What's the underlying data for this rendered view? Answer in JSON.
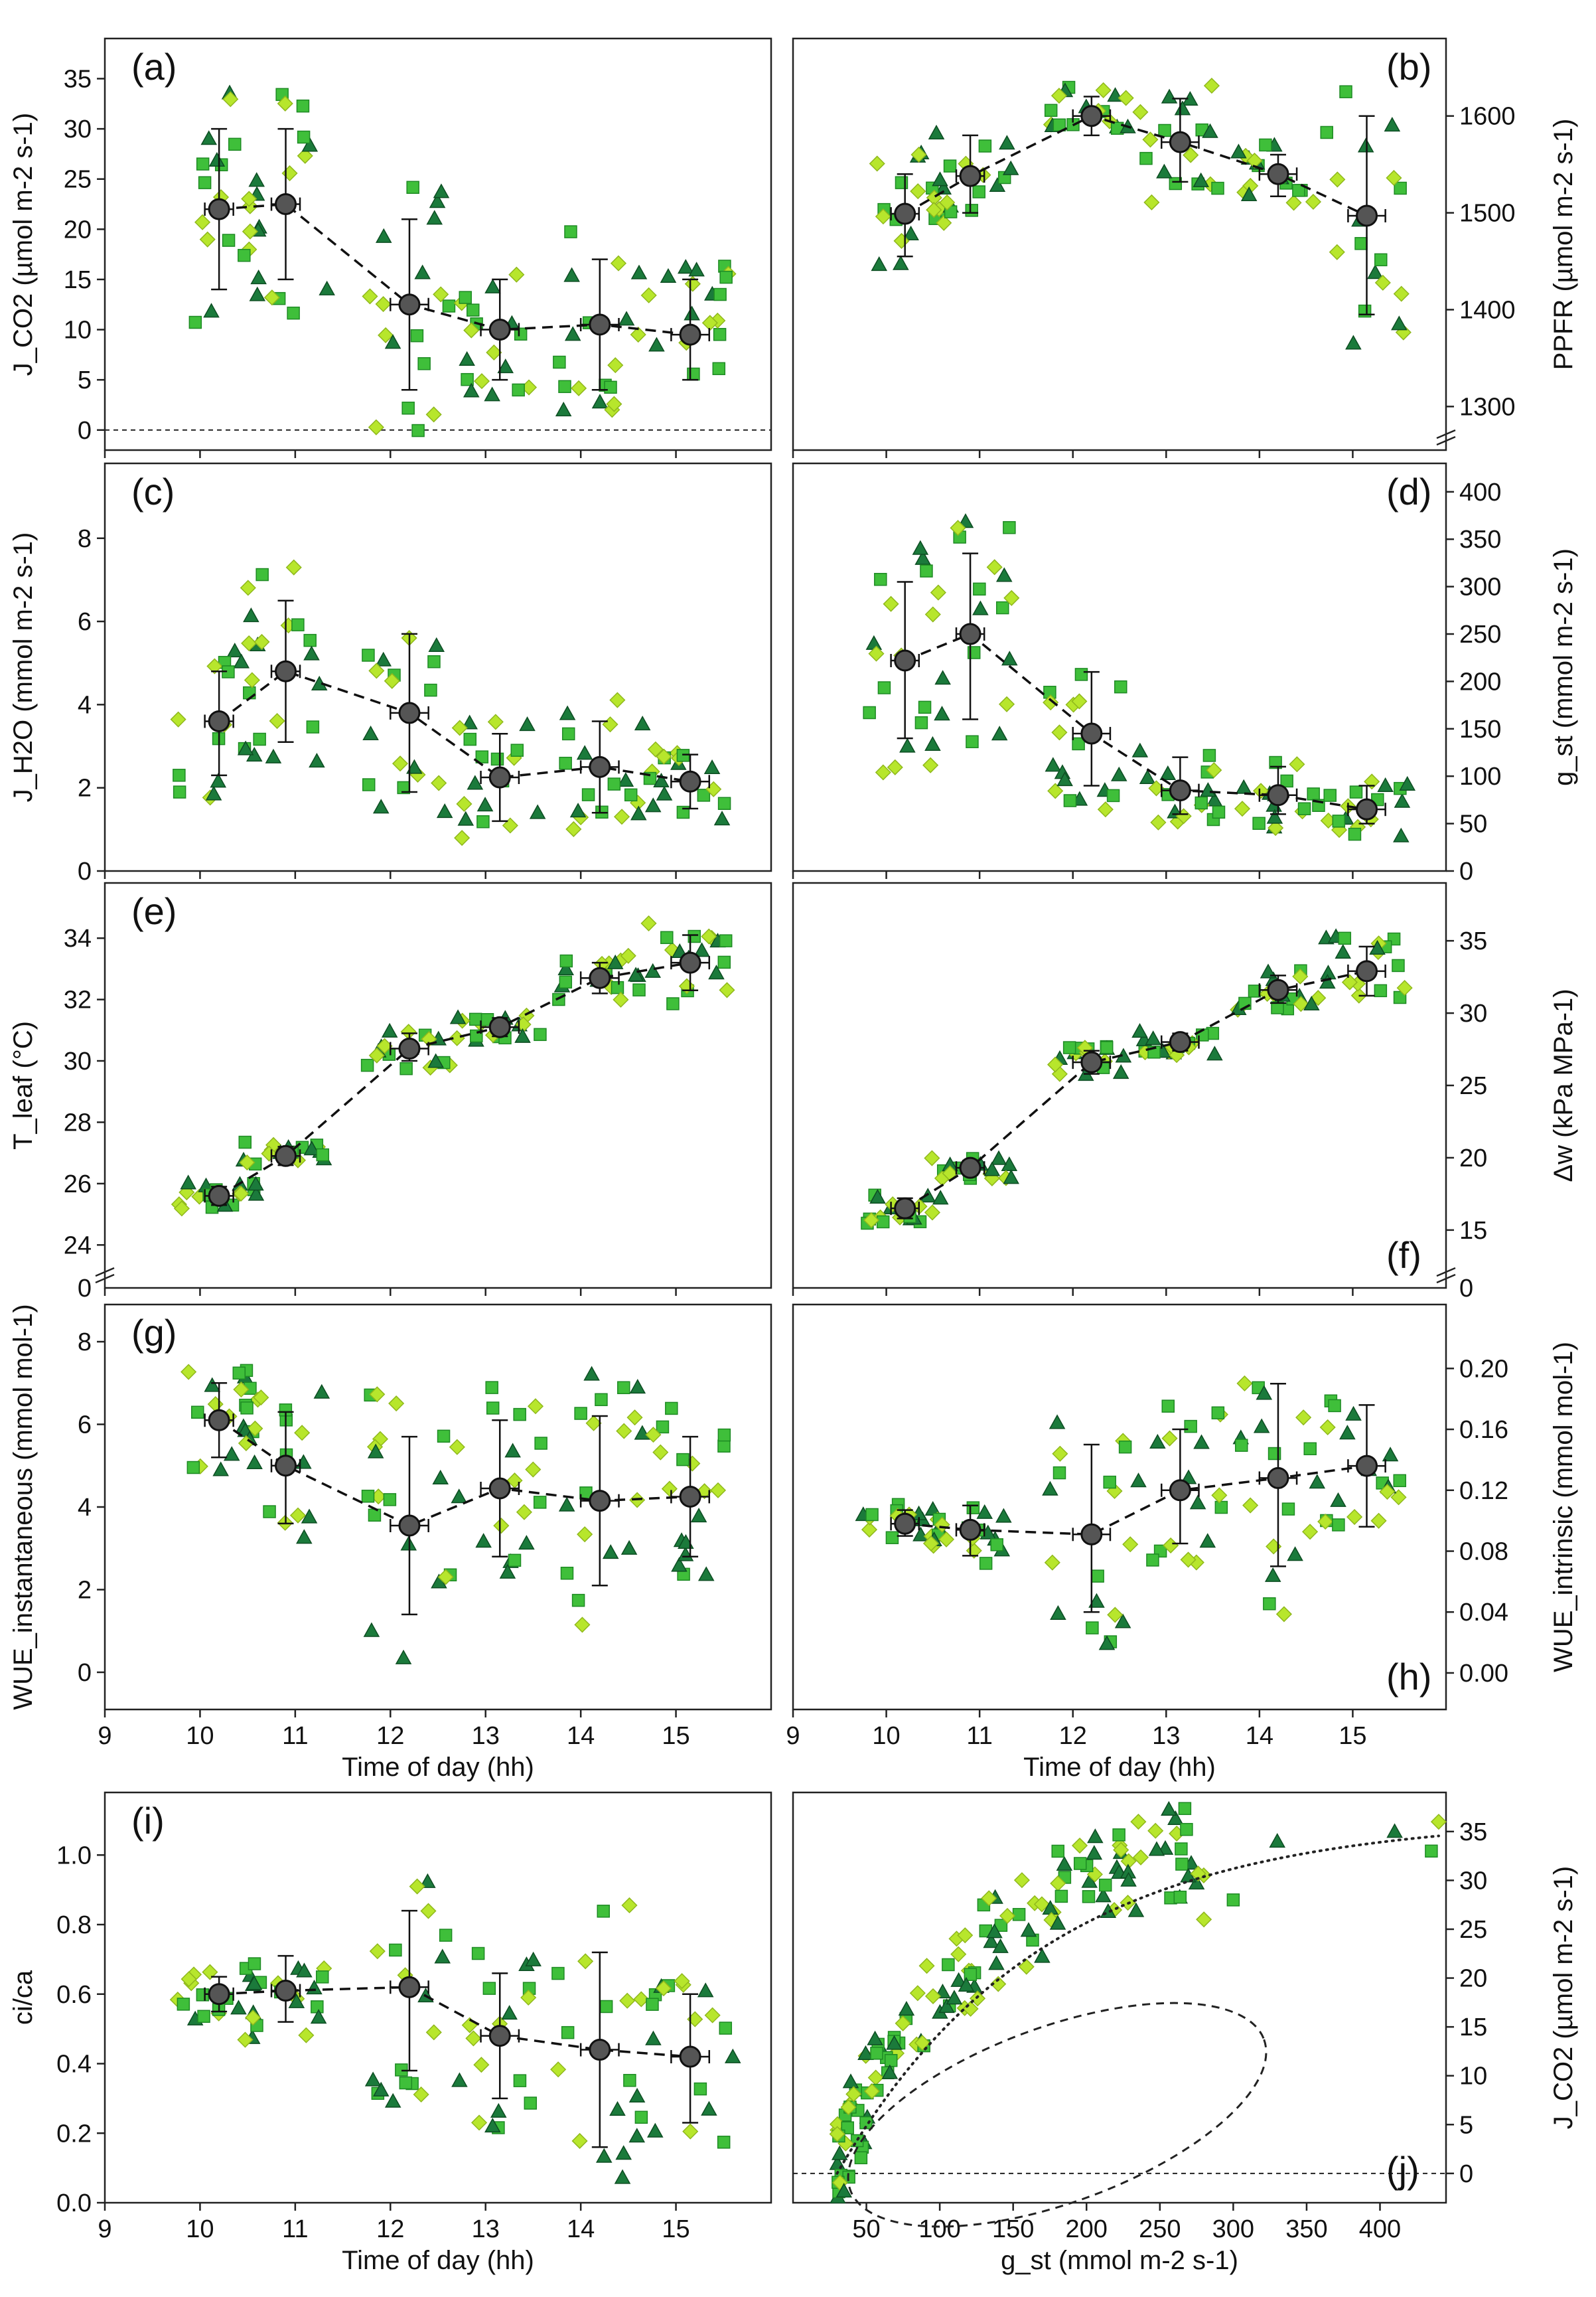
{
  "colors": {
    "dark": "#1b7a3b",
    "medium": "#3fbf3a",
    "light": "#b7e62c",
    "mean": "#555555"
  },
  "chart_data": [
    {
      "id": "a",
      "label": "(a)",
      "type": "scatter",
      "ylabel": "J_CO2 (µmol m-2 s-1)",
      "y_side": "left",
      "ylim": [
        -2,
        39
      ],
      "yticks": [
        0,
        5,
        10,
        15,
        20,
        25,
        30,
        35
      ],
      "xlim": [
        9,
        16
      ],
      "xticks": [
        9,
        10,
        11,
        12,
        13,
        14,
        15
      ],
      "zero_line": true,
      "means": [
        {
          "x": 10.2,
          "y": 22,
          "ylo": 14,
          "yhi": 30,
          "xerr": 0.15
        },
        {
          "x": 10.9,
          "y": 22.5,
          "ylo": 15,
          "yhi": 30,
          "xerr": 0.15
        },
        {
          "x": 12.2,
          "y": 12.5,
          "ylo": 4,
          "yhi": 21,
          "xerr": 0.2
        },
        {
          "x": 13.15,
          "y": 10,
          "ylo": 5,
          "yhi": 15,
          "xerr": 0.2
        },
        {
          "x": 14.2,
          "y": 10.5,
          "ylo": 4,
          "yhi": 17,
          "xerr": 0.2
        },
        {
          "x": 15.15,
          "y": 9.5,
          "ylo": 5,
          "yhi": 15,
          "xerr": 0.2
        }
      ]
    },
    {
      "id": "b",
      "label": "(b)",
      "type": "scatter",
      "ylabel": "PPFR (µmol m-2 s-1)",
      "y_side": "right",
      "ylim": [
        1255,
        1680
      ],
      "yticks": [
        1300,
        1400,
        1500,
        1600
      ],
      "axis_break": true,
      "xlim": [
        9,
        16
      ],
      "xticks": [
        9,
        10,
        11,
        12,
        13,
        14,
        15
      ],
      "means": [
        {
          "x": 10.2,
          "y": 1499,
          "ylo": 1455,
          "yhi": 1540,
          "xerr": 0.15
        },
        {
          "x": 10.9,
          "y": 1538,
          "ylo": 1500,
          "yhi": 1580,
          "xerr": 0.15
        },
        {
          "x": 12.2,
          "y": 1600,
          "ylo": 1580,
          "yhi": 1620,
          "xerr": 0.2
        },
        {
          "x": 13.15,
          "y": 1573,
          "ylo": 1532,
          "yhi": 1618,
          "xerr": 0.2
        },
        {
          "x": 14.2,
          "y": 1540,
          "ylo": 1517,
          "yhi": 1560,
          "xerr": 0.2
        },
        {
          "x": 15.15,
          "y": 1497,
          "ylo": 1395,
          "yhi": 1600,
          "xerr": 0.2
        }
      ]
    },
    {
      "id": "c",
      "label": "(c)",
      "type": "scatter",
      "ylabel": "J_H2O (mmol m-2 s-1)",
      "y_side": "left",
      "ylim": [
        0,
        9.8
      ],
      "yticks": [
        0,
        2,
        4,
        6,
        8
      ],
      "xlim": [
        9,
        16
      ],
      "xticks": [
        9,
        10,
        11,
        12,
        13,
        14,
        15
      ],
      "means": [
        {
          "x": 10.2,
          "y": 3.6,
          "ylo": 2.3,
          "yhi": 4.8,
          "xerr": 0.15
        },
        {
          "x": 10.9,
          "y": 4.8,
          "ylo": 3.1,
          "yhi": 6.5,
          "xerr": 0.15
        },
        {
          "x": 12.2,
          "y": 3.8,
          "ylo": 1.9,
          "yhi": 5.7,
          "xerr": 0.2
        },
        {
          "x": 13.15,
          "y": 2.25,
          "ylo": 1.2,
          "yhi": 3.3,
          "xerr": 0.2
        },
        {
          "x": 14.2,
          "y": 2.5,
          "ylo": 1.4,
          "yhi": 3.6,
          "xerr": 0.2
        },
        {
          "x": 15.15,
          "y": 2.15,
          "ylo": 1.5,
          "yhi": 2.8,
          "xerr": 0.2
        }
      ]
    },
    {
      "id": "d",
      "label": "(d)",
      "type": "scatter",
      "ylabel": "g_st (mmol m-2 s-1)",
      "y_side": "right",
      "ylim": [
        0,
        430
      ],
      "yticks": [
        0,
        50,
        100,
        150,
        200,
        250,
        300,
        350,
        400
      ],
      "xlim": [
        9,
        16
      ],
      "xticks": [
        9,
        10,
        11,
        12,
        13,
        14,
        15
      ],
      "means": [
        {
          "x": 10.2,
          "y": 222,
          "ylo": 140,
          "yhi": 305,
          "xerr": 0.15
        },
        {
          "x": 10.9,
          "y": 250,
          "ylo": 160,
          "yhi": 335,
          "xerr": 0.15
        },
        {
          "x": 12.2,
          "y": 145,
          "ylo": 90,
          "yhi": 210,
          "xerr": 0.2
        },
        {
          "x": 13.15,
          "y": 85,
          "ylo": 60,
          "yhi": 120,
          "xerr": 0.2
        },
        {
          "x": 14.2,
          "y": 80,
          "ylo": 60,
          "yhi": 110,
          "xerr": 0.2
        },
        {
          "x": 15.15,
          "y": 65,
          "ylo": 50,
          "yhi": 90,
          "xerr": 0.2
        }
      ]
    },
    {
      "id": "e",
      "label": "(e)",
      "type": "scatter",
      "ylabel": "T_leaf (°C)",
      "y_side": "left",
      "ylim": [
        22.6,
        35.8
      ],
      "yticks": [
        24,
        26,
        28,
        30,
        32,
        34
      ],
      "axis_break": true,
      "bottom_tick": "0",
      "xlim": [
        9,
        16
      ],
      "xticks": [
        9,
        10,
        11,
        12,
        13,
        14,
        15
      ],
      "means": [
        {
          "x": 10.2,
          "y": 25.6,
          "ylo": 25.3,
          "yhi": 25.9,
          "xerr": 0.15
        },
        {
          "x": 10.9,
          "y": 26.9,
          "ylo": 26.6,
          "yhi": 27.2,
          "xerr": 0.15
        },
        {
          "x": 12.2,
          "y": 30.4,
          "ylo": 30.0,
          "yhi": 30.9,
          "xerr": 0.2
        },
        {
          "x": 13.15,
          "y": 31.1,
          "ylo": 30.8,
          "yhi": 31.4,
          "xerr": 0.2
        },
        {
          "x": 14.2,
          "y": 32.7,
          "ylo": 32.2,
          "yhi": 33.2,
          "xerr": 0.2
        },
        {
          "x": 15.15,
          "y": 33.2,
          "ylo": 32.3,
          "yhi": 34.1,
          "xerr": 0.2
        }
      ]
    },
    {
      "id": "f",
      "label": "(f)",
      "type": "scatter",
      "ylabel": "Δw (kPa MPa-1)",
      "y_side": "right",
      "ylim": [
        11,
        39
      ],
      "yticks": [
        15,
        20,
        25,
        30,
        35
      ],
      "axis_break": true,
      "bottom_tick": "0",
      "xlim": [
        9,
        16
      ],
      "xticks": [
        9,
        10,
        11,
        12,
        13,
        14,
        15
      ],
      "means": [
        {
          "x": 10.2,
          "y": 16.5,
          "ylo": 15.8,
          "yhi": 17.2,
          "xerr": 0.15
        },
        {
          "x": 10.9,
          "y": 19.3,
          "ylo": 18.8,
          "yhi": 19.8,
          "xerr": 0.15
        },
        {
          "x": 12.2,
          "y": 26.6,
          "ylo": 25.8,
          "yhi": 27.4,
          "xerr": 0.2
        },
        {
          "x": 13.15,
          "y": 28.0,
          "ylo": 27.4,
          "yhi": 28.6,
          "xerr": 0.2
        },
        {
          "x": 14.2,
          "y": 31.6,
          "ylo": 30.7,
          "yhi": 32.6,
          "xerr": 0.2
        },
        {
          "x": 15.15,
          "y": 32.9,
          "ylo": 31.2,
          "yhi": 34.6,
          "xerr": 0.2
        }
      ]
    },
    {
      "id": "g",
      "label": "(g)",
      "type": "scatter",
      "ylabel": "WUE_instantaneous (mmol mol-1)",
      "y_side": "left",
      "ylim": [
        -0.9,
        8.9
      ],
      "yticks": [
        0,
        2,
        4,
        6,
        8
      ],
      "xlabel": "Time of day (hh)",
      "xlim": [
        9,
        16
      ],
      "xticks": [
        9,
        10,
        11,
        12,
        13,
        14,
        15
      ],
      "means": [
        {
          "x": 10.2,
          "y": 6.1,
          "ylo": 5.2,
          "yhi": 7.0,
          "xerr": 0.15
        },
        {
          "x": 10.9,
          "y": 5.0,
          "ylo": 3.6,
          "yhi": 6.3,
          "xerr": 0.15
        },
        {
          "x": 12.2,
          "y": 3.55,
          "ylo": 1.4,
          "yhi": 5.7,
          "xerr": 0.2
        },
        {
          "x": 13.15,
          "y": 4.45,
          "ylo": 2.8,
          "yhi": 6.1,
          "xerr": 0.2
        },
        {
          "x": 14.2,
          "y": 4.15,
          "ylo": 2.1,
          "yhi": 6.2,
          "xerr": 0.2
        },
        {
          "x": 15.15,
          "y": 4.25,
          "ylo": 2.8,
          "yhi": 5.7,
          "xerr": 0.2
        }
      ]
    },
    {
      "id": "h",
      "label": "(h)",
      "type": "scatter",
      "ylabel": "WUE_intrinsic (mmol mol-1)",
      "y_side": "right",
      "ylim": [
        -0.024,
        0.242
      ],
      "yticks": [
        0.0,
        0.04,
        0.08,
        0.12,
        0.16,
        0.2
      ],
      "xlabel": "Time of day (hh)",
      "xlim": [
        9,
        16
      ],
      "xticks": [
        9,
        10,
        11,
        12,
        13,
        14,
        15
      ],
      "means": [
        {
          "x": 10.2,
          "y": 0.098,
          "ylo": 0.09,
          "yhi": 0.107,
          "xerr": 0.15
        },
        {
          "x": 10.9,
          "y": 0.094,
          "ylo": 0.077,
          "yhi": 0.11,
          "xerr": 0.15
        },
        {
          "x": 12.2,
          "y": 0.091,
          "ylo": 0.04,
          "yhi": 0.15,
          "xerr": 0.2
        },
        {
          "x": 13.15,
          "y": 0.12,
          "ylo": 0.085,
          "yhi": 0.16,
          "xerr": 0.2
        },
        {
          "x": 14.2,
          "y": 0.128,
          "ylo": 0.07,
          "yhi": 0.19,
          "xerr": 0.2
        },
        {
          "x": 15.15,
          "y": 0.136,
          "ylo": 0.096,
          "yhi": 0.176,
          "xerr": 0.2
        }
      ]
    },
    {
      "id": "i",
      "label": "(i)",
      "type": "scatter",
      "ylabel": "ci/ca",
      "y_side": "left",
      "ylim": [
        0,
        1.18
      ],
      "yticks": [
        0.0,
        0.2,
        0.4,
        0.6,
        0.8,
        1.0
      ],
      "xlabel": "Time of day (hh)",
      "xlim": [
        9,
        16
      ],
      "xticks": [
        9,
        10,
        11,
        12,
        13,
        14,
        15
      ],
      "means": [
        {
          "x": 10.2,
          "y": 0.6,
          "ylo": 0.55,
          "yhi": 0.65,
          "xerr": 0.15
        },
        {
          "x": 10.9,
          "y": 0.61,
          "ylo": 0.52,
          "yhi": 0.71,
          "xerr": 0.15
        },
        {
          "x": 12.2,
          "y": 0.62,
          "ylo": 0.38,
          "yhi": 0.84,
          "xerr": 0.2
        },
        {
          "x": 13.15,
          "y": 0.48,
          "ylo": 0.3,
          "yhi": 0.66,
          "xerr": 0.2
        },
        {
          "x": 14.2,
          "y": 0.44,
          "ylo": 0.16,
          "yhi": 0.72,
          "xerr": 0.2
        },
        {
          "x": 15.15,
          "y": 0.42,
          "ylo": 0.23,
          "yhi": 0.6,
          "xerr": 0.2
        }
      ]
    },
    {
      "id": "j",
      "label": "(j)",
      "type": "scatter",
      "ylabel": "J_CO2 (µmol m-2 s-1)",
      "y_side": "right",
      "ylim": [
        -3,
        39
      ],
      "yticks": [
        0,
        5,
        10,
        15,
        20,
        25,
        30,
        35
      ],
      "xlabel": "g_st (mmol m-2 s-1)",
      "xlim": [
        0,
        445
      ],
      "xticks": [
        50,
        100,
        150,
        200,
        250,
        300,
        350,
        400
      ],
      "zero_line": true,
      "fit_curve": "dotted saturating curve",
      "ellipse": "dashed ellipse around low-J_CO2 points"
    }
  ]
}
